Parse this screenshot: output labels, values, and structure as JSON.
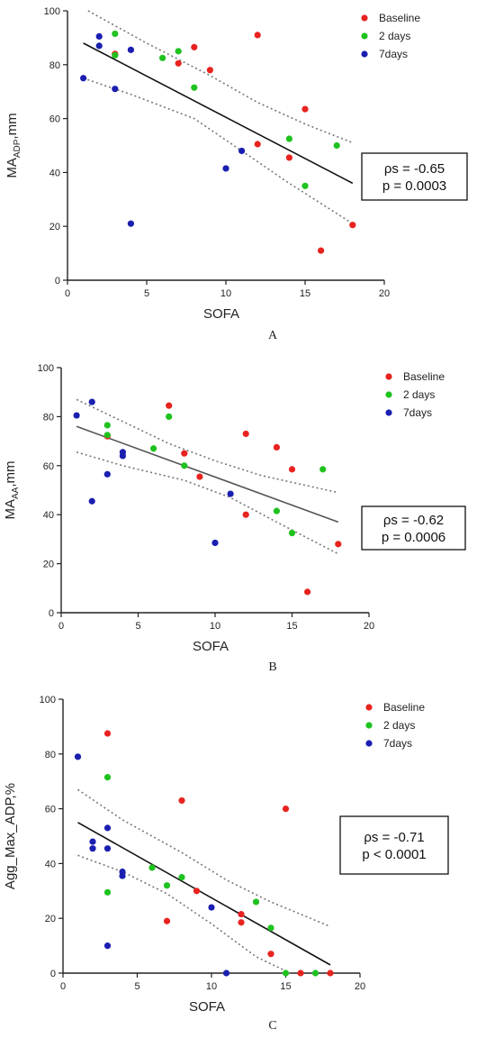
{
  "colors": {
    "baseline": "#e8231f",
    "two_days": "#1fc21f",
    "seven_days": "#1a1fb0",
    "regression": "#111111",
    "ci": "#777777"
  },
  "chart_data": [
    {
      "type": "scatter",
      "panel_label": "A",
      "xlabel": "SOFA",
      "ylabel_main": "MA",
      "ylabel_sub": "ADP",
      "ylabel_tail": ",mm",
      "xlim": [
        0,
        20
      ],
      "ylim": [
        0,
        100
      ],
      "xticks": [
        "0",
        "5",
        "10",
        "15",
        "20"
      ],
      "yticks": [
        "0",
        "20",
        "40",
        "60",
        "80",
        "100"
      ],
      "legend": [
        "Baseline",
        "2 days",
        "7days"
      ],
      "legend_position": "top-right",
      "stats": [
        "ρs = -0.65",
        "p = 0.0003"
      ],
      "regression_line": {
        "x": [
          1,
          18
        ],
        "y": [
          88,
          36
        ]
      },
      "ci_upper": {
        "x": [
          1.3,
          5,
          9,
          12,
          15,
          18
        ],
        "y": [
          100,
          88,
          76,
          66,
          58,
          51
        ]
      },
      "ci_lower": {
        "x": [
          1,
          4,
          8,
          11,
          14,
          18
        ],
        "y": [
          75,
          69,
          60,
          48,
          36,
          21
        ]
      },
      "series": [
        {
          "name": "Baseline",
          "color_key": "baseline",
          "points": [
            [
              3,
              84
            ],
            [
              7,
              80.5
            ],
            [
              8,
              86.5
            ],
            [
              9,
              78
            ],
            [
              12,
              91
            ],
            [
              12,
              50.5
            ],
            [
              14,
              45.5
            ],
            [
              15,
              63.5
            ],
            [
              16,
              11
            ],
            [
              18,
              20.5
            ]
          ]
        },
        {
          "name": "2 days",
          "color_key": "two_days",
          "points": [
            [
              3,
              91.5
            ],
            [
              3,
              83.5
            ],
            [
              6,
              82.5
            ],
            [
              7,
              85
            ],
            [
              8,
              71.5
            ],
            [
              14,
              52.5
            ],
            [
              15,
              35
            ],
            [
              17,
              50
            ]
          ]
        },
        {
          "name": "7days",
          "color_key": "seven_days",
          "points": [
            [
              1,
              75
            ],
            [
              2,
              90.5
            ],
            [
              2,
              87
            ],
            [
              3,
              71
            ],
            [
              4,
              85.5
            ],
            [
              4,
              21
            ],
            [
              10,
              41.5
            ],
            [
              11,
              48
            ]
          ]
        }
      ]
    },
    {
      "type": "scatter",
      "panel_label": "B",
      "xlabel": "SOFA",
      "ylabel_main": "MA",
      "ylabel_sub": "AA",
      "ylabel_tail": ",mm",
      "xlim": [
        0,
        20
      ],
      "ylim": [
        0,
        100
      ],
      "xticks": [
        "0",
        "5",
        "10",
        "15",
        "20"
      ],
      "yticks": [
        "0",
        "20",
        "40",
        "60",
        "80",
        "100"
      ],
      "legend": [
        "Baseline",
        "2 days",
        "7days"
      ],
      "legend_position": "top-right",
      "stats": [
        "ρs = -0.62",
        "p = 0.0006"
      ],
      "regression_line": {
        "x": [
          1,
          18
        ],
        "y": [
          76,
          37
        ]
      },
      "ci_upper": {
        "x": [
          1,
          4,
          7,
          10,
          13,
          18
        ],
        "y": [
          87,
          78,
          69,
          62,
          56,
          49
        ]
      },
      "ci_lower": {
        "x": [
          1,
          4,
          8,
          11,
          14,
          18
        ],
        "y": [
          65.5,
          60,
          54,
          47,
          37,
          24
        ]
      },
      "series": [
        {
          "name": "Baseline",
          "color_key": "baseline",
          "points": [
            [
              3,
              72
            ],
            [
              7,
              84.5
            ],
            [
              8,
              65
            ],
            [
              9,
              55.5
            ],
            [
              12,
              73
            ],
            [
              12,
              40
            ],
            [
              14,
              67.5
            ],
            [
              15,
              58.5
            ],
            [
              16,
              8.5
            ],
            [
              18,
              28
            ]
          ]
        },
        {
          "name": "2 days",
          "color_key": "two_days",
          "points": [
            [
              3,
              76.5
            ],
            [
              3,
              72.5
            ],
            [
              6,
              67
            ],
            [
              7,
              80
            ],
            [
              8,
              60
            ],
            [
              14,
              41.5
            ],
            [
              15,
              32.5
            ],
            [
              17,
              58.5
            ]
          ]
        },
        {
          "name": "7days",
          "color_key": "seven_days",
          "points": [
            [
              1,
              80.5
            ],
            [
              2,
              86
            ],
            [
              2,
              45.5
            ],
            [
              3,
              56.5
            ],
            [
              4,
              65.5
            ],
            [
              4,
              64
            ],
            [
              10,
              28.5
            ],
            [
              11,
              48.5
            ]
          ]
        }
      ]
    },
    {
      "type": "scatter",
      "panel_label": "C",
      "xlabel": "SOFA",
      "ylabel_main": "Agg_Max_ADP,%",
      "ylabel_sub": "",
      "ylabel_tail": "",
      "xlim": [
        0,
        20
      ],
      "ylim": [
        0,
        100
      ],
      "xticks": [
        "0",
        "5",
        "10",
        "15",
        "20"
      ],
      "yticks": [
        "0",
        "20",
        "40",
        "60",
        "80",
        "100"
      ],
      "legend": [
        "Baseline",
        "2 days",
        "7days"
      ],
      "legend_position": "top-right",
      "stats": [
        "ρs = -0.71",
        "p < 0.0001"
      ],
      "regression_line": {
        "x": [
          1,
          18
        ],
        "y": [
          55,
          3
        ]
      },
      "ci_upper": {
        "x": [
          1,
          4,
          8,
          11,
          14,
          18
        ],
        "y": [
          67,
          56,
          44,
          34,
          26,
          17
        ]
      },
      "ci_lower": {
        "x": [
          1,
          4,
          7,
          10,
          13,
          15.3
        ],
        "y": [
          43,
          37,
          29,
          18,
          6,
          0
        ]
      },
      "series": [
        {
          "name": "Baseline",
          "color_key": "baseline",
          "points": [
            [
              3,
              87.5
            ],
            [
              7,
              19
            ],
            [
              8,
              63
            ],
            [
              9,
              30
            ],
            [
              12,
              21.5
            ],
            [
              12,
              18.5
            ],
            [
              14,
              7
            ],
            [
              15,
              60
            ],
            [
              16,
              0
            ],
            [
              18,
              0
            ]
          ]
        },
        {
          "name": "2 days",
          "color_key": "two_days",
          "points": [
            [
              3,
              71.5
            ],
            [
              3,
              29.5
            ],
            [
              6,
              38.5
            ],
            [
              7,
              32
            ],
            [
              8,
              35
            ],
            [
              13,
              26
            ],
            [
              14,
              16.5
            ],
            [
              15,
              0
            ],
            [
              17,
              0
            ]
          ]
        },
        {
          "name": "7days",
          "color_key": "seven_days",
          "points": [
            [
              1,
              79
            ],
            [
              2,
              48
            ],
            [
              2,
              45.5
            ],
            [
              3,
              53
            ],
            [
              3,
              45.5
            ],
            [
              3,
              10
            ],
            [
              4,
              37
            ],
            [
              4,
              35.5
            ],
            [
              10,
              24
            ],
            [
              11,
              0
            ]
          ]
        }
      ]
    }
  ]
}
